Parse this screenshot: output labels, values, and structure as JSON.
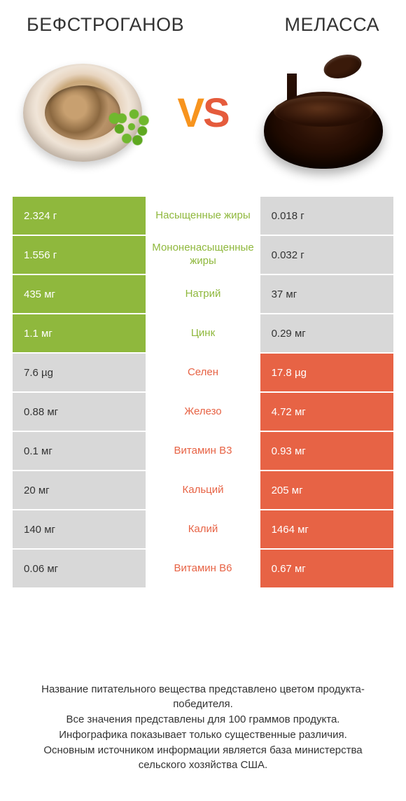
{
  "colors": {
    "left_win": "#8fb83d",
    "right_win": "#e76345"
  },
  "titles": {
    "left": "БЕФСТРОГАНОВ",
    "right": "МЕЛАССА"
  },
  "vs": {
    "v": "V",
    "s": "S"
  },
  "rows": [
    {
      "left": "2.324 г",
      "label": "Насыщенные жиры",
      "right": "0.018 г",
      "winner": "left"
    },
    {
      "left": "1.556 г",
      "label": "Мононенасыщенные жиры",
      "right": "0.032 г",
      "winner": "left"
    },
    {
      "left": "435 мг",
      "label": "Натрий",
      "right": "37 мг",
      "winner": "left"
    },
    {
      "left": "1.1 мг",
      "label": "Цинк",
      "right": "0.29 мг",
      "winner": "left"
    },
    {
      "left": "7.6 µg",
      "label": "Селен",
      "right": "17.8 µg",
      "winner": "right"
    },
    {
      "left": "0.88 мг",
      "label": "Железо",
      "right": "4.72 мг",
      "winner": "right"
    },
    {
      "left": "0.1 мг",
      "label": "Витамин B3",
      "right": "0.93 мг",
      "winner": "right"
    },
    {
      "left": "20 мг",
      "label": "Кальций",
      "right": "205 мг",
      "winner": "right"
    },
    {
      "left": "140 мг",
      "label": "Калий",
      "right": "1464 мг",
      "winner": "right"
    },
    {
      "left": "0.06 мг",
      "label": "Витамин B6",
      "right": "0.67 мг",
      "winner": "right"
    }
  ],
  "footer": "Название питательного вещества представлено цветом продукта-победителя.\nВсе значения представлены для 100 граммов продукта.\nИнфографика показывает только существенные различия.\nОсновным источником информации является база министерства сельского хозяйства США."
}
